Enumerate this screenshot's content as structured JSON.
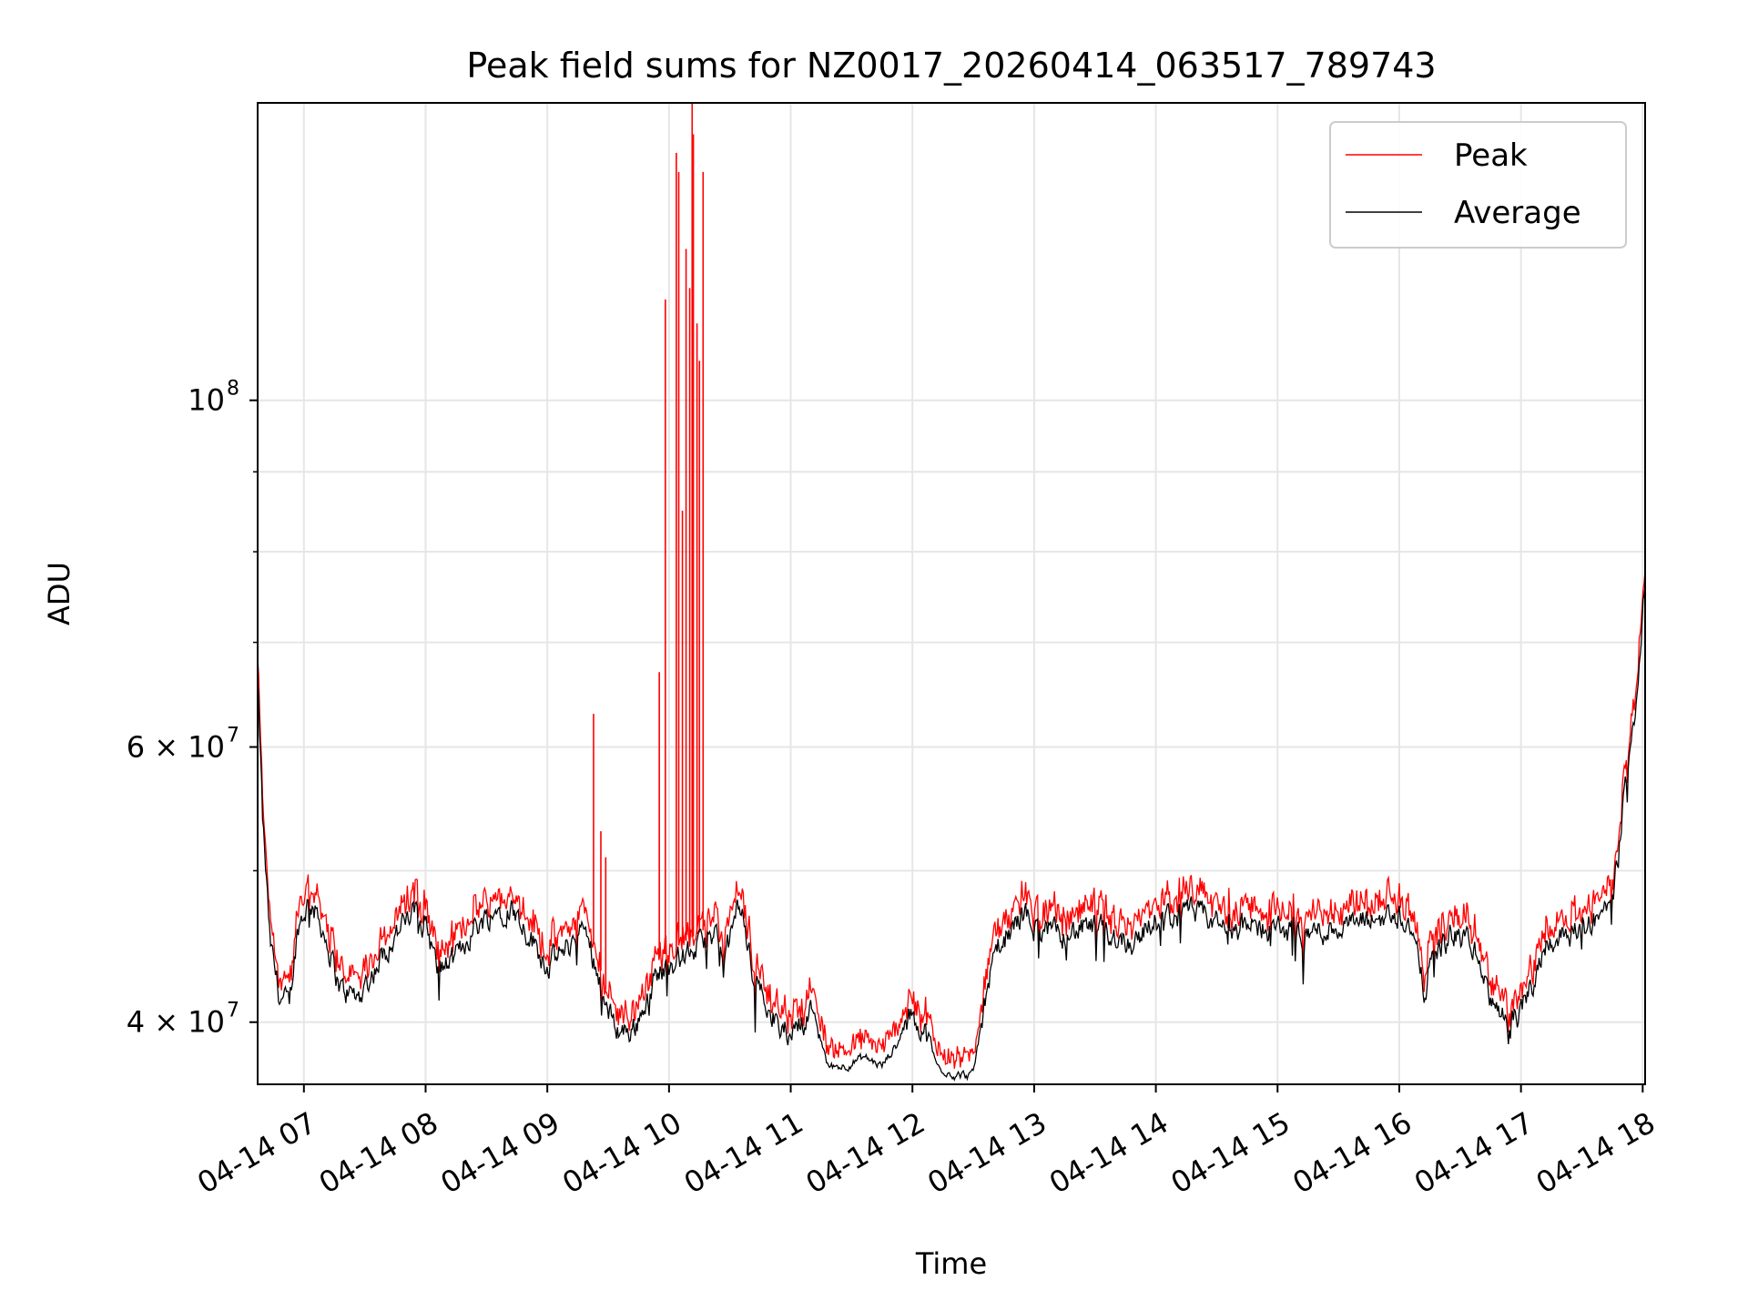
{
  "chart_data": {
    "type": "line",
    "title": "Peak field sums for NZ0017_20260414_063517_789743",
    "xlabel": "Time",
    "ylabel": "ADU",
    "yscale": "log",
    "ylim": [
      36500000,
      155000000
    ],
    "xlim_hours": [
      6.62,
      18.02
    ],
    "x_ticks": [
      {
        "h": 7,
        "label": "04-14 07"
      },
      {
        "h": 8,
        "label": "04-14 08"
      },
      {
        "h": 9,
        "label": "04-14 09"
      },
      {
        "h": 10,
        "label": "04-14 10"
      },
      {
        "h": 11,
        "label": "04-14 11"
      },
      {
        "h": 12,
        "label": "04-14 12"
      },
      {
        "h": 13,
        "label": "04-14 13"
      },
      {
        "h": 14,
        "label": "04-14 14"
      },
      {
        "h": 15,
        "label": "04-14 15"
      },
      {
        "h": 16,
        "label": "04-14 16"
      },
      {
        "h": 17,
        "label": "04-14 17"
      },
      {
        "h": 18,
        "label": "04-14 18"
      }
    ],
    "y_major_ticks": [
      {
        "v": 40000000,
        "label": "4 × 10",
        "exp": "7"
      },
      {
        "v": 60000000,
        "label": "6 × 10",
        "exp": "7"
      },
      {
        "v": 100000000,
        "label": "10",
        "exp": "8"
      }
    ],
    "y_minor_ticks": [
      50000000,
      70000000,
      80000000,
      90000000
    ],
    "grid": true,
    "legend_position": "top-right",
    "series": [
      {
        "name": "Peak",
        "color": "#ff0000"
      },
      {
        "name": "Average",
        "color": "#000000"
      }
    ],
    "average_trend": [
      [
        6.62,
        66000000
      ],
      [
        6.66,
        54000000
      ],
      [
        6.72,
        45000000
      ],
      [
        6.8,
        41500000
      ],
      [
        6.88,
        41000000
      ],
      [
        6.95,
        46000000
      ],
      [
        7.05,
        48000000
      ],
      [
        7.15,
        46000000
      ],
      [
        7.3,
        42000000
      ],
      [
        7.45,
        41500000
      ],
      [
        7.6,
        43500000
      ],
      [
        7.75,
        45500000
      ],
      [
        7.9,
        47000000
      ],
      [
        8.0,
        46500000
      ],
      [
        8.1,
        43000000
      ],
      [
        8.25,
        44000000
      ],
      [
        8.4,
        46000000
      ],
      [
        8.55,
        47000000
      ],
      [
        8.7,
        47500000
      ],
      [
        8.85,
        45500000
      ],
      [
        9.0,
        43500000
      ],
      [
        9.15,
        44500000
      ],
      [
        9.3,
        46000000
      ],
      [
        9.4,
        43500000
      ],
      [
        9.5,
        40500000
      ],
      [
        9.6,
        39500000
      ],
      [
        9.7,
        39500000
      ],
      [
        9.8,
        41000000
      ],
      [
        9.9,
        43000000
      ],
      [
        10.0,
        43500000
      ],
      [
        10.1,
        44000000
      ],
      [
        10.2,
        44500000
      ],
      [
        10.3,
        45000000
      ],
      [
        10.4,
        45500000
      ],
      [
        10.45,
        44000000
      ],
      [
        10.5,
        45000000
      ],
      [
        10.58,
        48000000
      ],
      [
        10.62,
        46000000
      ],
      [
        10.7,
        42500000
      ],
      [
        10.8,
        41500000
      ],
      [
        10.9,
        39500000
      ],
      [
        11.0,
        39500000
      ],
      [
        11.1,
        40000000
      ],
      [
        11.2,
        41000000
      ],
      [
        11.3,
        37500000
      ],
      [
        11.45,
        37500000
      ],
      [
        11.6,
        38000000
      ],
      [
        11.75,
        37500000
      ],
      [
        11.9,
        39000000
      ],
      [
        12.0,
        40500000
      ],
      [
        12.1,
        39500000
      ],
      [
        12.2,
        37500000
      ],
      [
        12.35,
        37000000
      ],
      [
        12.5,
        37000000
      ],
      [
        12.6,
        41500000
      ],
      [
        12.7,
        44500000
      ],
      [
        12.8,
        45500000
      ],
      [
        12.9,
        47000000
      ],
      [
        13.0,
        46000000
      ],
      [
        13.2,
        45500000
      ],
      [
        13.5,
        46000000
      ],
      [
        13.8,
        45000000
      ],
      [
        14.0,
        46500000
      ],
      [
        14.3,
        47000000
      ],
      [
        14.6,
        46000000
      ],
      [
        14.9,
        46000000
      ],
      [
        15.2,
        45500000
      ],
      [
        15.5,
        46000000
      ],
      [
        15.8,
        46500000
      ],
      [
        16.0,
        47000000
      ],
      [
        16.1,
        46000000
      ],
      [
        16.2,
        42000000
      ],
      [
        16.3,
        44500000
      ],
      [
        16.45,
        45500000
      ],
      [
        16.6,
        45000000
      ],
      [
        16.7,
        42500000
      ],
      [
        16.8,
        40500000
      ],
      [
        16.9,
        40000000
      ],
      [
        17.0,
        40500000
      ],
      [
        17.1,
        42500000
      ],
      [
        17.2,
        45000000
      ],
      [
        17.35,
        45500000
      ],
      [
        17.5,
        46000000
      ],
      [
        17.6,
        46500000
      ],
      [
        17.7,
        47000000
      ],
      [
        17.75,
        48000000
      ],
      [
        17.8,
        51000000
      ],
      [
        17.85,
        56000000
      ],
      [
        17.9,
        59000000
      ],
      [
        17.95,
        65000000
      ],
      [
        18.0,
        74000000
      ],
      [
        18.02,
        77000000
      ]
    ],
    "peak_spikes": [
      [
        9.38,
        63000000
      ],
      [
        9.44,
        53000000
      ],
      [
        9.48,
        51000000
      ],
      [
        9.92,
        67000000
      ],
      [
        9.97,
        116000000
      ],
      [
        10.06,
        144000000
      ],
      [
        10.08,
        140000000
      ],
      [
        10.11,
        85000000
      ],
      [
        10.14,
        125000000
      ],
      [
        10.17,
        118000000
      ],
      [
        10.19,
        155000000
      ],
      [
        10.2,
        148000000
      ],
      [
        10.23,
        112000000
      ],
      [
        10.25,
        106000000
      ],
      [
        10.28,
        140000000
      ]
    ]
  }
}
